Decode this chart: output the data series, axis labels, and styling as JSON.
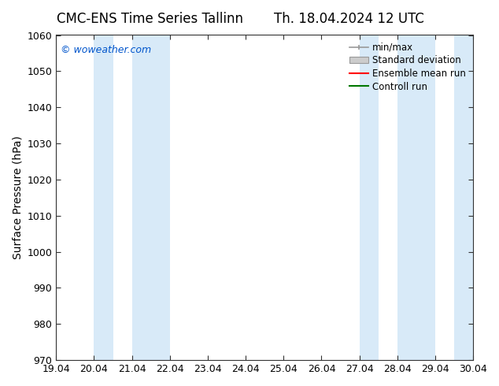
{
  "title_left": "CMC-ENS Time Series Tallinn",
  "title_right": "Th. 18.04.2024 12 UTC",
  "ylabel": "Surface Pressure (hPa)",
  "ylim": [
    970,
    1060
  ],
  "yticks": [
    970,
    980,
    990,
    1000,
    1010,
    1020,
    1030,
    1040,
    1050,
    1060
  ],
  "xlim": [
    0.0,
    11.0
  ],
  "xtick_labels": [
    "19.04",
    "20.04",
    "21.04",
    "22.04",
    "23.04",
    "24.04",
    "25.04",
    "26.04",
    "27.04",
    "28.04",
    "29.04",
    "30.04"
  ],
  "watermark": "© woweather.com",
  "watermark_color": "#0055cc",
  "bg_color": "#ffffff",
  "plot_bg_color": "#ffffff",
  "shaded_regions": [
    {
      "x_start": 1.0,
      "x_end": 1.5,
      "color": "#d8eaf8"
    },
    {
      "x_start": 2.0,
      "x_end": 3.0,
      "color": "#d8eaf8"
    },
    {
      "x_start": 8.0,
      "x_end": 8.5,
      "color": "#d8eaf8"
    },
    {
      "x_start": 9.0,
      "x_end": 10.0,
      "color": "#d8eaf8"
    },
    {
      "x_start": 10.5,
      "x_end": 11.0,
      "color": "#d8eaf8"
    }
  ],
  "legend_items": [
    {
      "label": "min/max",
      "color": "#999999",
      "type": "errorbar"
    },
    {
      "label": "Standard deviation",
      "color": "#cccccc",
      "type": "band"
    },
    {
      "label": "Ensemble mean run",
      "color": "#ff0000",
      "type": "line"
    },
    {
      "label": "Controll run",
      "color": "#007700",
      "type": "line"
    }
  ],
  "title_fontsize": 12,
  "axis_label_fontsize": 10,
  "tick_fontsize": 9,
  "legend_fontsize": 8.5,
  "watermark_fontsize": 9
}
